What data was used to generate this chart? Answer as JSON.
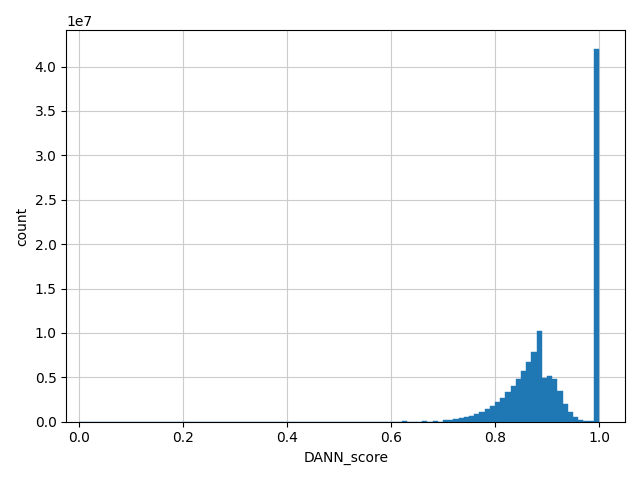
{
  "xlabel": "DANN_score",
  "ylabel": "count",
  "bar_color": "#1f77b4",
  "bar_edgecolor": "#1f77b4",
  "figsize": [
    6.4,
    4.8
  ],
  "dpi": 100,
  "grid": true,
  "bin_counts": [
    0,
    0,
    0,
    0,
    0,
    0,
    0,
    0,
    0,
    0,
    0,
    0,
    0,
    0,
    0,
    0,
    0,
    0,
    0,
    0,
    0,
    0,
    0,
    0,
    0,
    0,
    0,
    0,
    0,
    0,
    0,
    0,
    0,
    0,
    0,
    0,
    0,
    0,
    0,
    0,
    0,
    0,
    0,
    0,
    0,
    0,
    0,
    0,
    0,
    0,
    0,
    0,
    0,
    0,
    0,
    0,
    0,
    0,
    0,
    0,
    20000,
    0,
    40000,
    0,
    0,
    0,
    80000,
    0,
    100000,
    0,
    150000,
    200000,
    280000,
    380000,
    500000,
    650000,
    850000,
    1100000,
    1400000,
    1800000,
    2200000,
    2700000,
    3300000,
    4000000,
    4800000,
    5700000,
    6700000,
    7800000,
    10200000,
    4900000,
    5200000,
    4800000,
    3500000,
    2000000,
    1100000,
    500000,
    250000,
    120000,
    50000,
    42000000
  ]
}
